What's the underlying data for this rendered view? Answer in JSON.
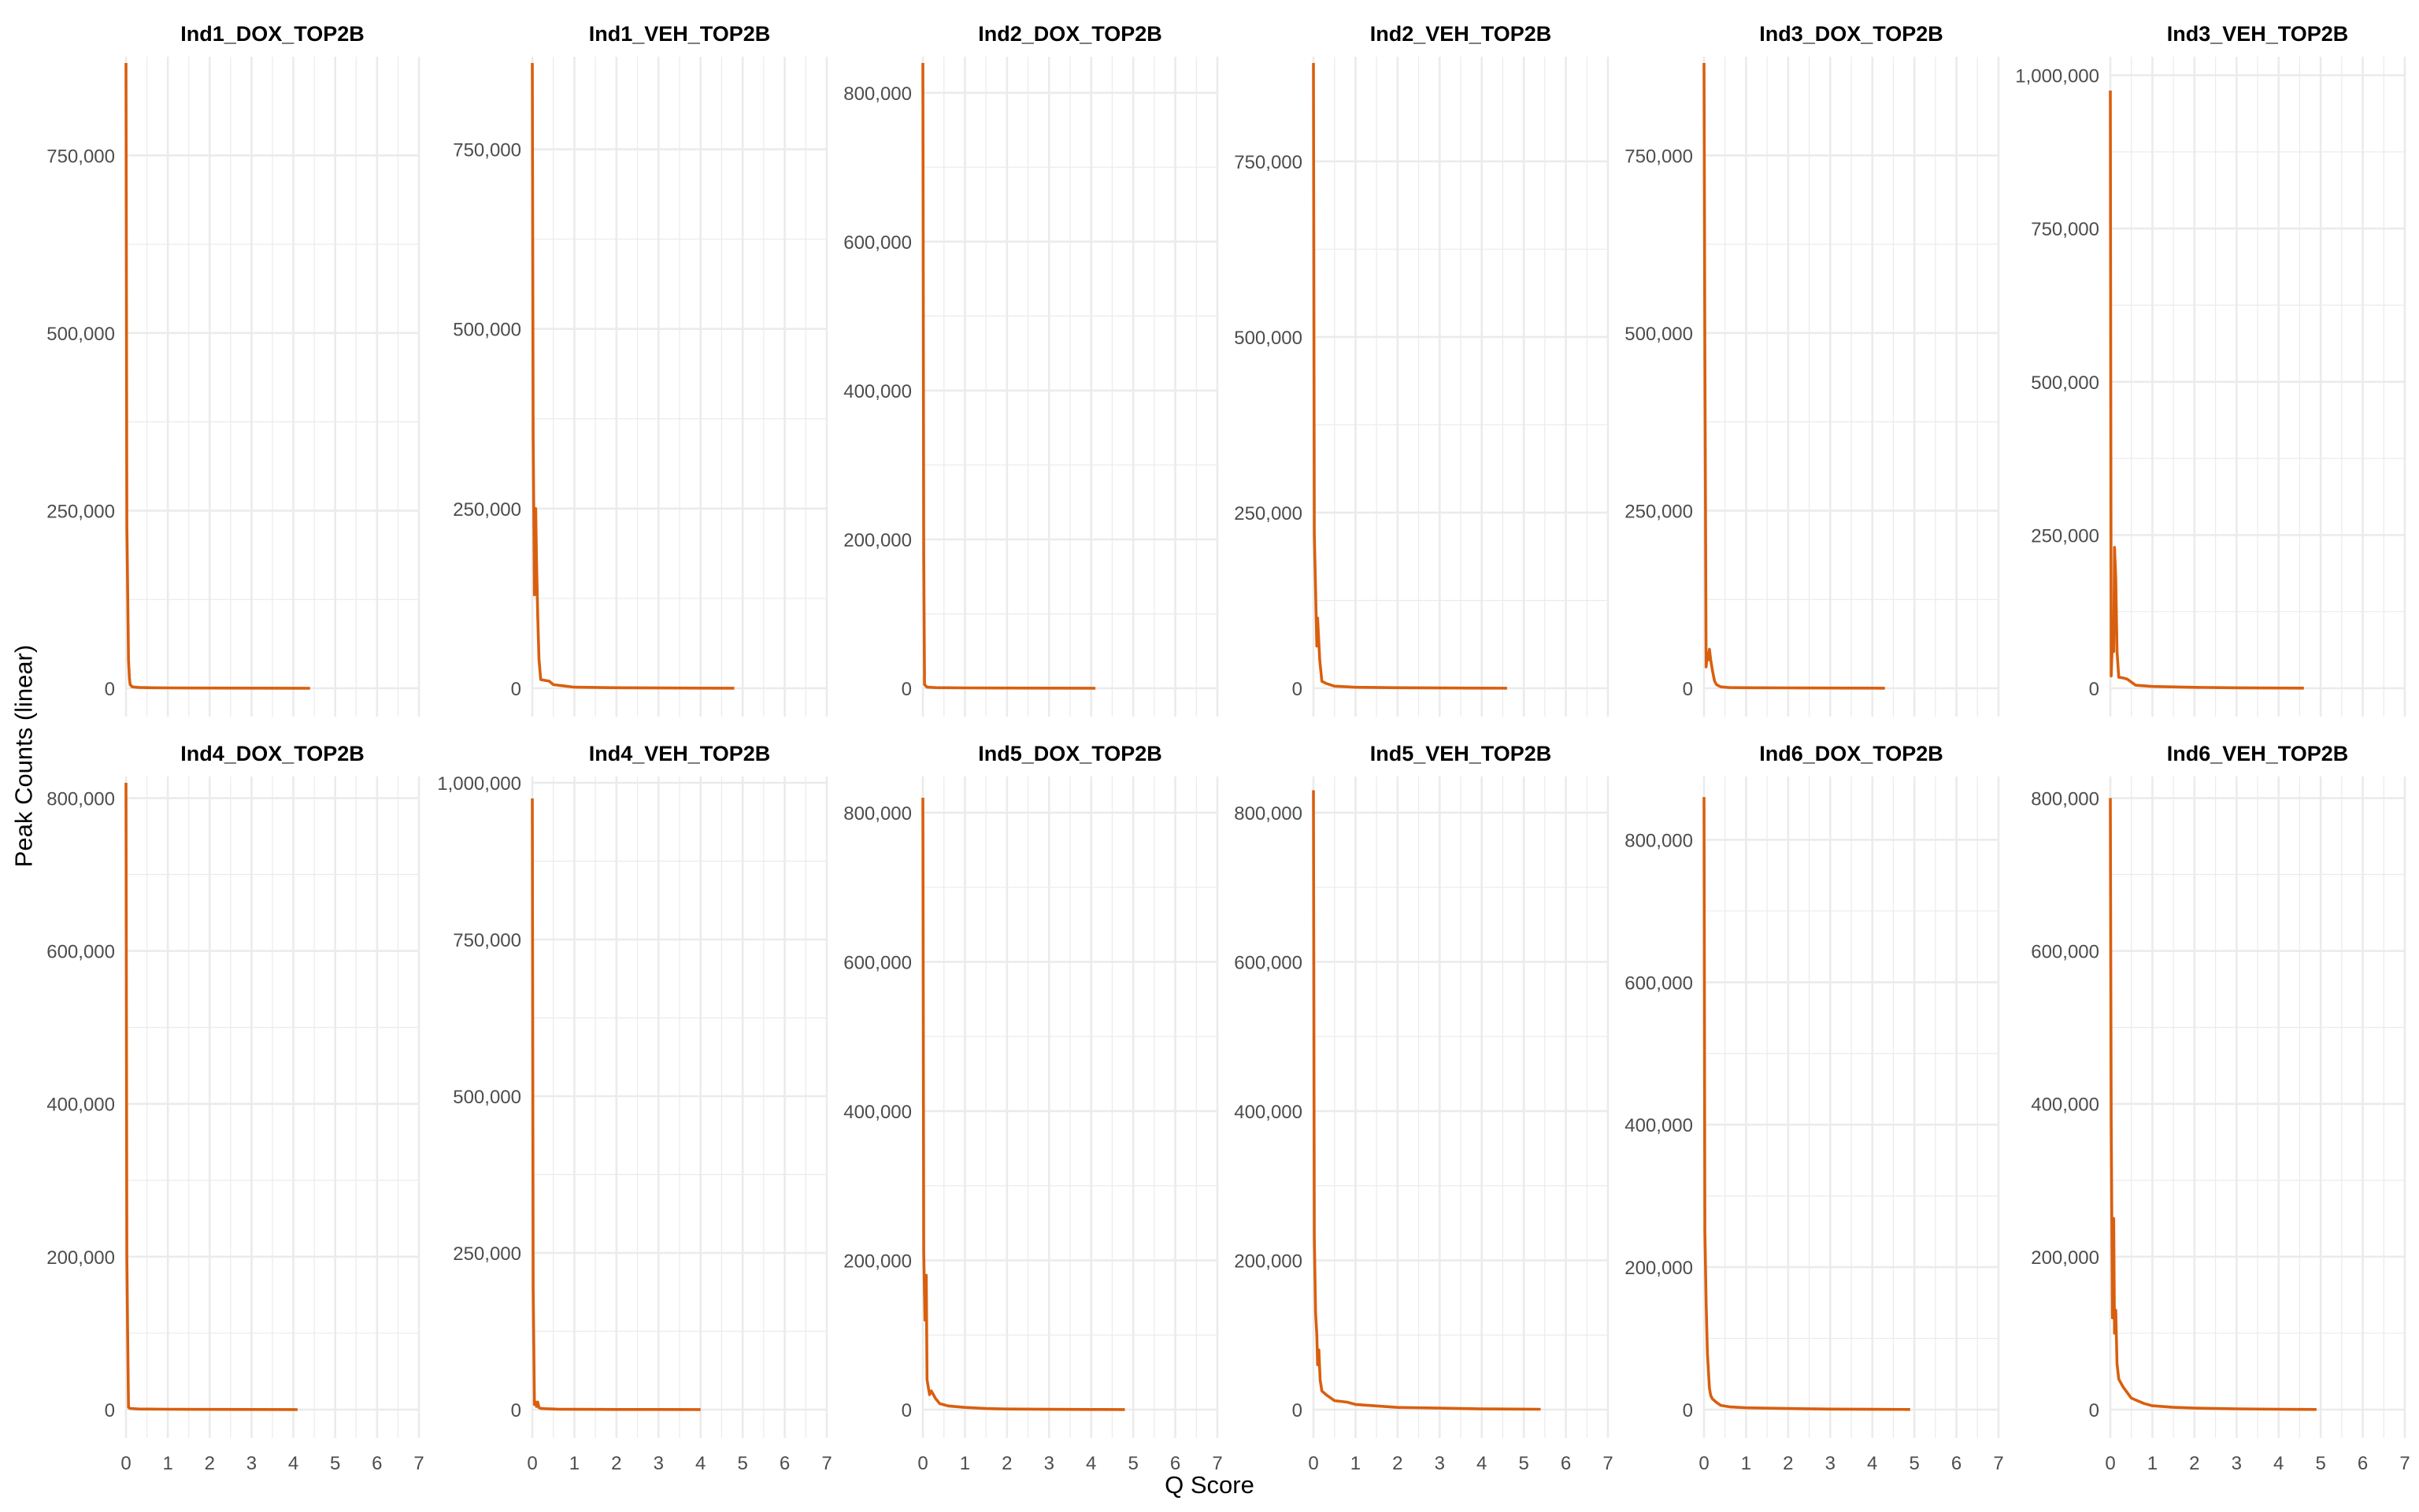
{
  "axis": {
    "xlabel": "Q Score",
    "ylabel": "Peak Counts (linear)"
  },
  "style": {
    "line_color": "#D95F0E",
    "grid_color": "#EBEBEB",
    "tick_color": "#4D4D4D"
  },
  "chart_data": [
    {
      "type": "line",
      "title": "Ind1_DOX_TOP2B",
      "xlim": [
        0,
        7
      ],
      "ylim": [
        0,
        880000
      ],
      "xticks": [
        0,
        1,
        2,
        3,
        4,
        5,
        6,
        7
      ],
      "yticks": [
        0,
        250000,
        500000,
        750000
      ],
      "x": [
        0,
        0.02,
        0.04,
        0.06,
        0.08,
        0.1,
        0.15,
        0.3,
        0.6,
        1,
        2,
        3,
        4,
        4.4
      ],
      "y": [
        880000,
        230000,
        140000,
        40000,
        15000,
        5000,
        2000,
        1200,
        800,
        500,
        300,
        200,
        100,
        50
      ]
    },
    {
      "type": "line",
      "title": "Ind1_VEH_TOP2B",
      "xlim": [
        0,
        7
      ],
      "ylim": [
        0,
        870000
      ],
      "xticks": [
        0,
        1,
        2,
        3,
        4,
        5,
        6,
        7
      ],
      "yticks": [
        0,
        250000,
        500000,
        750000
      ],
      "x": [
        0,
        0.02,
        0.05,
        0.08,
        0.1,
        0.13,
        0.16,
        0.2,
        0.3,
        0.4,
        0.5,
        0.8,
        1,
        2,
        3,
        4,
        4.8
      ],
      "y": [
        870000,
        350000,
        130000,
        250000,
        180000,
        100000,
        40000,
        12000,
        11000,
        10000,
        5000,
        3000,
        1500,
        800,
        400,
        200,
        100
      ]
    },
    {
      "type": "line",
      "title": "Ind2_DOX_TOP2B",
      "xlim": [
        0,
        7
      ],
      "ylim": [
        0,
        840000
      ],
      "xticks": [
        0,
        1,
        2,
        3,
        4,
        5,
        6,
        7
      ],
      "yticks": [
        0,
        200000,
        400000,
        600000,
        800000
      ],
      "x": [
        0,
        0.02,
        0.04,
        0.1,
        0.3,
        1,
        2,
        3,
        4,
        4.1
      ],
      "y": [
        840000,
        180000,
        5000,
        1500,
        800,
        500,
        300,
        200,
        100,
        50
      ]
    },
    {
      "type": "line",
      "title": "Ind2_VEH_TOP2B",
      "xlim": [
        0,
        7
      ],
      "ylim": [
        0,
        890000
      ],
      "xticks": [
        0,
        1,
        2,
        3,
        4,
        5,
        6,
        7
      ],
      "yticks": [
        0,
        250000,
        500000,
        750000
      ],
      "x": [
        0,
        0.02,
        0.05,
        0.08,
        0.1,
        0.15,
        0.2,
        0.3,
        0.5,
        1,
        2,
        3,
        4,
        4.6
      ],
      "y": [
        890000,
        220000,
        140000,
        60000,
        100000,
        40000,
        10000,
        7000,
        3000,
        1500,
        800,
        400,
        200,
        100
      ]
    },
    {
      "type": "line",
      "title": "Ind3_DOX_TOP2B",
      "xlim": [
        0,
        7
      ],
      "ylim": [
        0,
        880000
      ],
      "xticks": [
        0,
        1,
        2,
        3,
        4,
        5,
        6,
        7
      ],
      "yticks": [
        0,
        250000,
        500000,
        750000
      ],
      "x": [
        0,
        0.02,
        0.05,
        0.08,
        0.1,
        0.13,
        0.16,
        0.2,
        0.25,
        0.3,
        0.4,
        0.6,
        1,
        2,
        3,
        4,
        4.3
      ],
      "y": [
        880000,
        470000,
        30000,
        50000,
        40000,
        55000,
        40000,
        25000,
        10000,
        5000,
        2000,
        1000,
        800,
        500,
        300,
        200,
        100
      ]
    },
    {
      "type": "line",
      "title": "Ind3_VEH_TOP2B",
      "xlim": [
        0,
        7
      ],
      "ylim": [
        0,
        1020000
      ],
      "xticks": [
        0,
        1,
        2,
        3,
        4,
        5,
        6,
        7
      ],
      "yticks": [
        0,
        250000,
        500000,
        750000,
        1000000
      ],
      "x": [
        0,
        0.02,
        0.05,
        0.08,
        0.1,
        0.13,
        0.16,
        0.2,
        0.3,
        0.4,
        0.6,
        1,
        2,
        3,
        4,
        4.6
      ],
      "y": [
        975000,
        20000,
        80000,
        60000,
        230000,
        180000,
        60000,
        18000,
        17000,
        15000,
        5000,
        3000,
        1500,
        800,
        400,
        200
      ]
    },
    {
      "type": "line",
      "title": "Ind4_DOX_TOP2B",
      "xlim": [
        0,
        7
      ],
      "ylim": [
        0,
        820000
      ],
      "xticks": [
        0,
        1,
        2,
        3,
        4,
        5,
        6,
        7
      ],
      "yticks": [
        0,
        200000,
        400000,
        600000,
        800000
      ],
      "x": [
        0,
        0.02,
        0.04,
        0.06,
        0.1,
        0.3,
        1,
        2,
        3,
        4,
        4.1
      ],
      "y": [
        820000,
        200000,
        100000,
        3000,
        1500,
        800,
        500,
        300,
        200,
        100,
        50
      ]
    },
    {
      "type": "line",
      "title": "Ind4_VEH_TOP2B",
      "xlim": [
        0,
        7
      ],
      "ylim": [
        0,
        1000000
      ],
      "xticks": [
        0,
        1,
        2,
        3,
        4,
        5,
        6,
        7
      ],
      "yticks": [
        0,
        250000,
        500000,
        750000,
        1000000
      ],
      "x": [
        0,
        0.02,
        0.05,
        0.08,
        0.1,
        0.13,
        0.16,
        0.2,
        0.3,
        0.6,
        1,
        2,
        3,
        4
      ],
      "y": [
        975000,
        195000,
        8000,
        12000,
        5000,
        12000,
        3000,
        2000,
        1500,
        800,
        500,
        300,
        200,
        100
      ]
    },
    {
      "type": "line",
      "title": "Ind5_DOX_TOP2B",
      "xlim": [
        0,
        7
      ],
      "ylim": [
        0,
        840000
      ],
      "xticks": [
        0,
        1,
        2,
        3,
        4,
        5,
        6,
        7
      ],
      "yticks": [
        0,
        200000,
        400000,
        600000,
        800000
      ],
      "x": [
        0,
        0.02,
        0.05,
        0.08,
        0.1,
        0.13,
        0.16,
        0.2,
        0.3,
        0.4,
        0.6,
        1,
        1.5,
        2,
        3,
        4,
        4.8
      ],
      "y": [
        820000,
        210000,
        120000,
        180000,
        40000,
        30000,
        20000,
        25000,
        15000,
        8000,
        5000,
        3000,
        1500,
        800,
        400,
        200,
        100
      ]
    },
    {
      "type": "line",
      "title": "Ind5_VEH_TOP2B",
      "xlim": [
        0,
        7
      ],
      "ylim": [
        0,
        840000
      ],
      "xticks": [
        0,
        1,
        2,
        3,
        4,
        5,
        6,
        7
      ],
      "yticks": [
        0,
        200000,
        400000,
        600000,
        800000
      ],
      "x": [
        0,
        0.02,
        0.05,
        0.08,
        0.1,
        0.13,
        0.16,
        0.2,
        0.3,
        0.5,
        0.8,
        1,
        1.5,
        2,
        3,
        4,
        5.4
      ],
      "y": [
        830000,
        230000,
        130000,
        100000,
        60000,
        80000,
        40000,
        25000,
        20000,
        12000,
        10000,
        7000,
        5000,
        3000,
        2000,
        1000,
        500
      ]
    },
    {
      "type": "line",
      "title": "Ind6_DOX_TOP2B",
      "xlim": [
        0,
        7
      ],
      "ylim": [
        0,
        880000
      ],
      "xticks": [
        0,
        1,
        2,
        3,
        4,
        5,
        6,
        7
      ],
      "yticks": [
        0,
        200000,
        400000,
        600000,
        800000
      ],
      "x": [
        0,
        0.02,
        0.05,
        0.08,
        0.1,
        0.13,
        0.16,
        0.2,
        0.3,
        0.4,
        0.6,
        1,
        2,
        3,
        4,
        4.9
      ],
      "y": [
        860000,
        250000,
        150000,
        80000,
        60000,
        30000,
        20000,
        15000,
        10000,
        6000,
        4000,
        2500,
        1500,
        800,
        400,
        200
      ]
    },
    {
      "type": "line",
      "title": "Ind6_VEH_TOP2B",
      "xlim": [
        0,
        7
      ],
      "ylim": [
        0,
        820000
      ],
      "xticks": [
        0,
        1,
        2,
        3,
        4,
        5,
        6,
        7
      ],
      "yticks": [
        0,
        200000,
        400000,
        600000,
        800000
      ],
      "x": [
        0,
        0.02,
        0.05,
        0.08,
        0.1,
        0.13,
        0.16,
        0.2,
        0.3,
        0.5,
        0.8,
        1,
        1.5,
        2,
        3,
        4,
        4.9
      ],
      "y": [
        800000,
        380000,
        120000,
        250000,
        100000,
        130000,
        60000,
        40000,
        30000,
        15000,
        8000,
        5000,
        3000,
        2000,
        1000,
        500,
        200
      ]
    }
  ]
}
